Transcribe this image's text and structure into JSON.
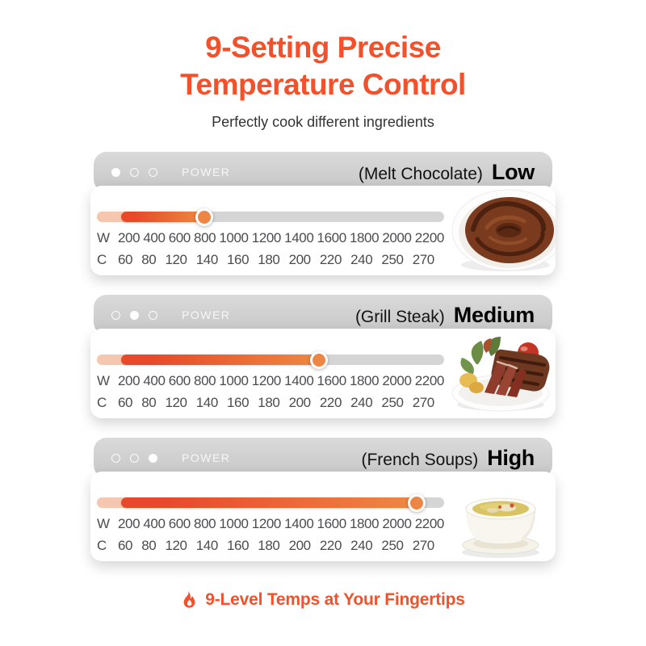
{
  "header": {
    "title_line1": "9-Setting Precise",
    "title_line2": "Temperature Control",
    "subtitle": "Perfectly cook different ingredients"
  },
  "scale": {
    "watt_unit": "W",
    "celsius_unit": "C",
    "watts": [
      "200",
      "400",
      "600",
      "800",
      "1000",
      "1200",
      "1400",
      "1600",
      "1800",
      "2000",
      "2200"
    ],
    "celsius": [
      "60",
      "80",
      "120",
      "140",
      "160",
      "180",
      "200",
      "220",
      "240",
      "250",
      "270"
    ]
  },
  "cards": [
    {
      "power_label": "POWER",
      "dish_label": "(Melt Chocolate)",
      "level_label": "Low",
      "active_dot": 0,
      "knob_percent": 31,
      "food": "melted-chocolate"
    },
    {
      "power_label": "POWER",
      "dish_label": "(Grill Steak)",
      "level_label": "Medium",
      "active_dot": 1,
      "knob_percent": 64,
      "food": "grilled-steak"
    },
    {
      "power_label": "POWER",
      "dish_label": "(French Soups)",
      "level_label": "High",
      "active_dot": 2,
      "knob_percent": 92,
      "food": "french-soup"
    }
  ],
  "footer": {
    "text": "9-Level Temps at Your Fingertips"
  },
  "colors": {
    "accent": "#F2512B",
    "slider_pale": "#F5C7B0",
    "slider_red": "#E7492A",
    "slider_orange": "#EE8843",
    "knob": "#ED8544",
    "track": "#D5D5D5",
    "header_gray": "#CCCCCC",
    "scale_text": "#4A4C4E"
  }
}
